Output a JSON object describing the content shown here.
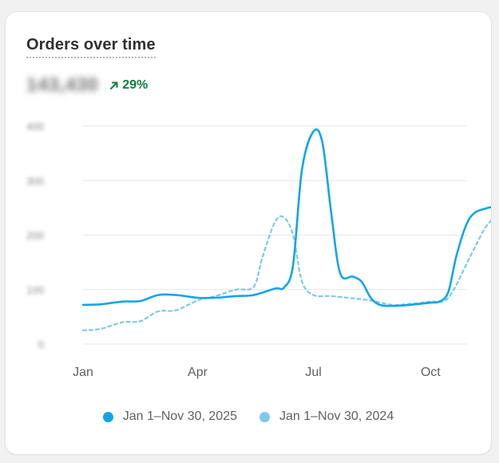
{
  "card": {
    "title": "Orders over time",
    "metric_value": "143,430",
    "delta_text": "29%",
    "delta_icon": "arrow-up-right-icon"
  },
  "colors": {
    "current": "#13a5e8",
    "previous": "#7fc9ea",
    "grid": "#e6e6e6",
    "delta": "#0c7d3f"
  },
  "chart_data": {
    "type": "line",
    "x_ticks": [
      "Jan",
      "Apr",
      "Jul",
      "Oct"
    ],
    "y_ticks": [
      "0",
      "100",
      "200",
      "300",
      "400"
    ],
    "ylim": [
      0,
      400
    ],
    "grid": true,
    "legend_position": "bottom",
    "series": [
      {
        "name": "Jan 1–Nov 30, 2025",
        "style": "solid",
        "x": [
          "2025-01-01",
          "2025-01-15",
          "2025-02-01",
          "2025-02-15",
          "2025-03-01",
          "2025-03-15",
          "2025-04-01",
          "2025-04-15",
          "2025-05-01",
          "2025-05-15",
          "2025-06-01",
          "2025-06-08",
          "2025-06-15",
          "2025-06-22",
          "2025-07-01",
          "2025-07-08",
          "2025-07-15",
          "2025-07-22",
          "2025-08-01",
          "2025-08-08",
          "2025-08-15",
          "2025-08-22",
          "2025-09-01",
          "2025-09-15",
          "2025-10-01",
          "2025-10-08",
          "2025-10-15",
          "2025-10-22",
          "2025-11-01",
          "2025-11-15",
          "2025-11-30"
        ],
        "values": [
          72,
          73,
          78,
          79,
          90,
          90,
          85,
          85,
          88,
          90,
          102,
          104,
          145,
          320,
          390,
          370,
          240,
          130,
          124,
          114,
          85,
          72,
          70,
          72,
          76,
          78,
          96,
          168,
          232,
          250,
          252
        ]
      },
      {
        "name": "Jan 1–Nov 30, 2024",
        "style": "dashed",
        "x": [
          "2025-01-01",
          "2025-01-15",
          "2025-02-01",
          "2025-02-15",
          "2025-03-01",
          "2025-03-15",
          "2025-04-01",
          "2025-04-15",
          "2025-05-01",
          "2025-05-15",
          "2025-05-22",
          "2025-06-01",
          "2025-06-08",
          "2025-06-15",
          "2025-06-22",
          "2025-07-01",
          "2025-07-15",
          "2025-08-01",
          "2025-08-15",
          "2025-09-01",
          "2025-09-15",
          "2025-10-01",
          "2025-10-15",
          "2025-11-01",
          "2025-11-15",
          "2025-11-30"
        ],
        "values": [
          25,
          28,
          40,
          42,
          60,
          62,
          80,
          88,
          100,
          105,
          160,
          225,
          232,
          200,
          115,
          90,
          88,
          84,
          80,
          72,
          74,
          78,
          85,
          160,
          220,
          245
        ]
      }
    ]
  }
}
